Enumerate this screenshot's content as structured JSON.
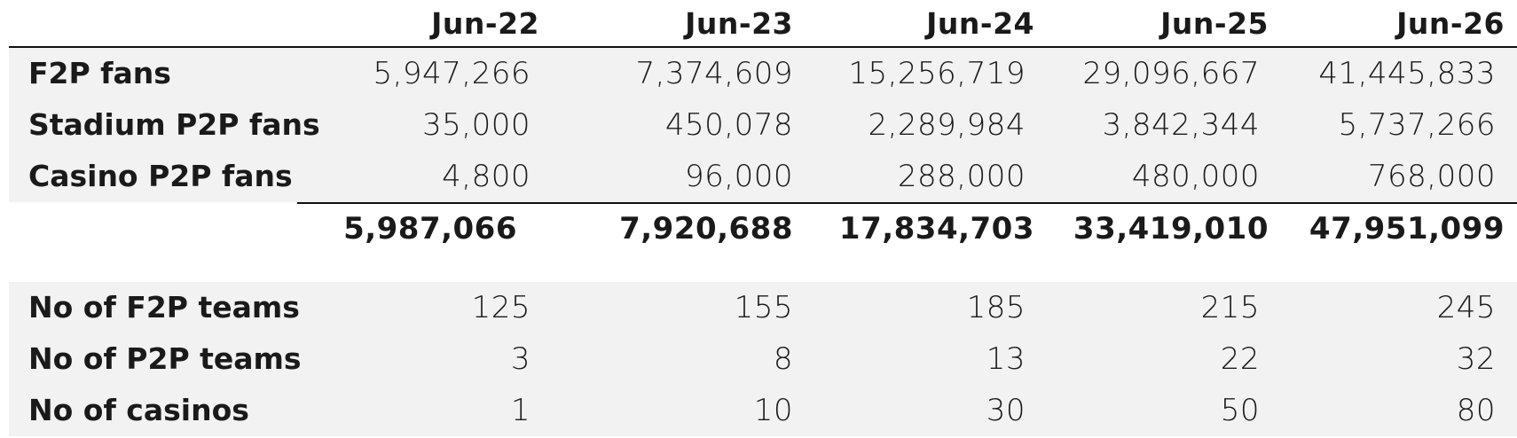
{
  "header": {
    "periods": [
      "Jun-22",
      "Jun-23",
      "Jun-24",
      "Jun-25",
      "Jun-26"
    ]
  },
  "fans": [
    {
      "label": "F2P fans",
      "values": [
        "5,947,266",
        "7,374,609",
        "15,256,719",
        "29,096,667",
        "41,445,833"
      ]
    },
    {
      "label": "Stadium P2P fans",
      "values": [
        "35,000",
        "450,078",
        "2,289,984",
        "3,842,344",
        "5,737,266"
      ]
    },
    {
      "label": "Casino P2P fans",
      "values": [
        "4,800",
        "96,000",
        "288,000",
        "480,000",
        "768,000"
      ]
    }
  ],
  "total": {
    "values": [
      "5,987,066",
      "7,920,688",
      "17,834,703",
      "33,419,010",
      "47,951,099"
    ]
  },
  "counts": [
    {
      "label": "No of F2P teams",
      "values": [
        "125",
        "155",
        "185",
        "215",
        "245"
      ]
    },
    {
      "label": "No of P2P teams",
      "values": [
        "3",
        "8",
        "13",
        "22",
        "32"
      ]
    },
    {
      "label": "No of casinos",
      "values": [
        "1",
        "10",
        "30",
        "50",
        "80"
      ]
    }
  ]
}
